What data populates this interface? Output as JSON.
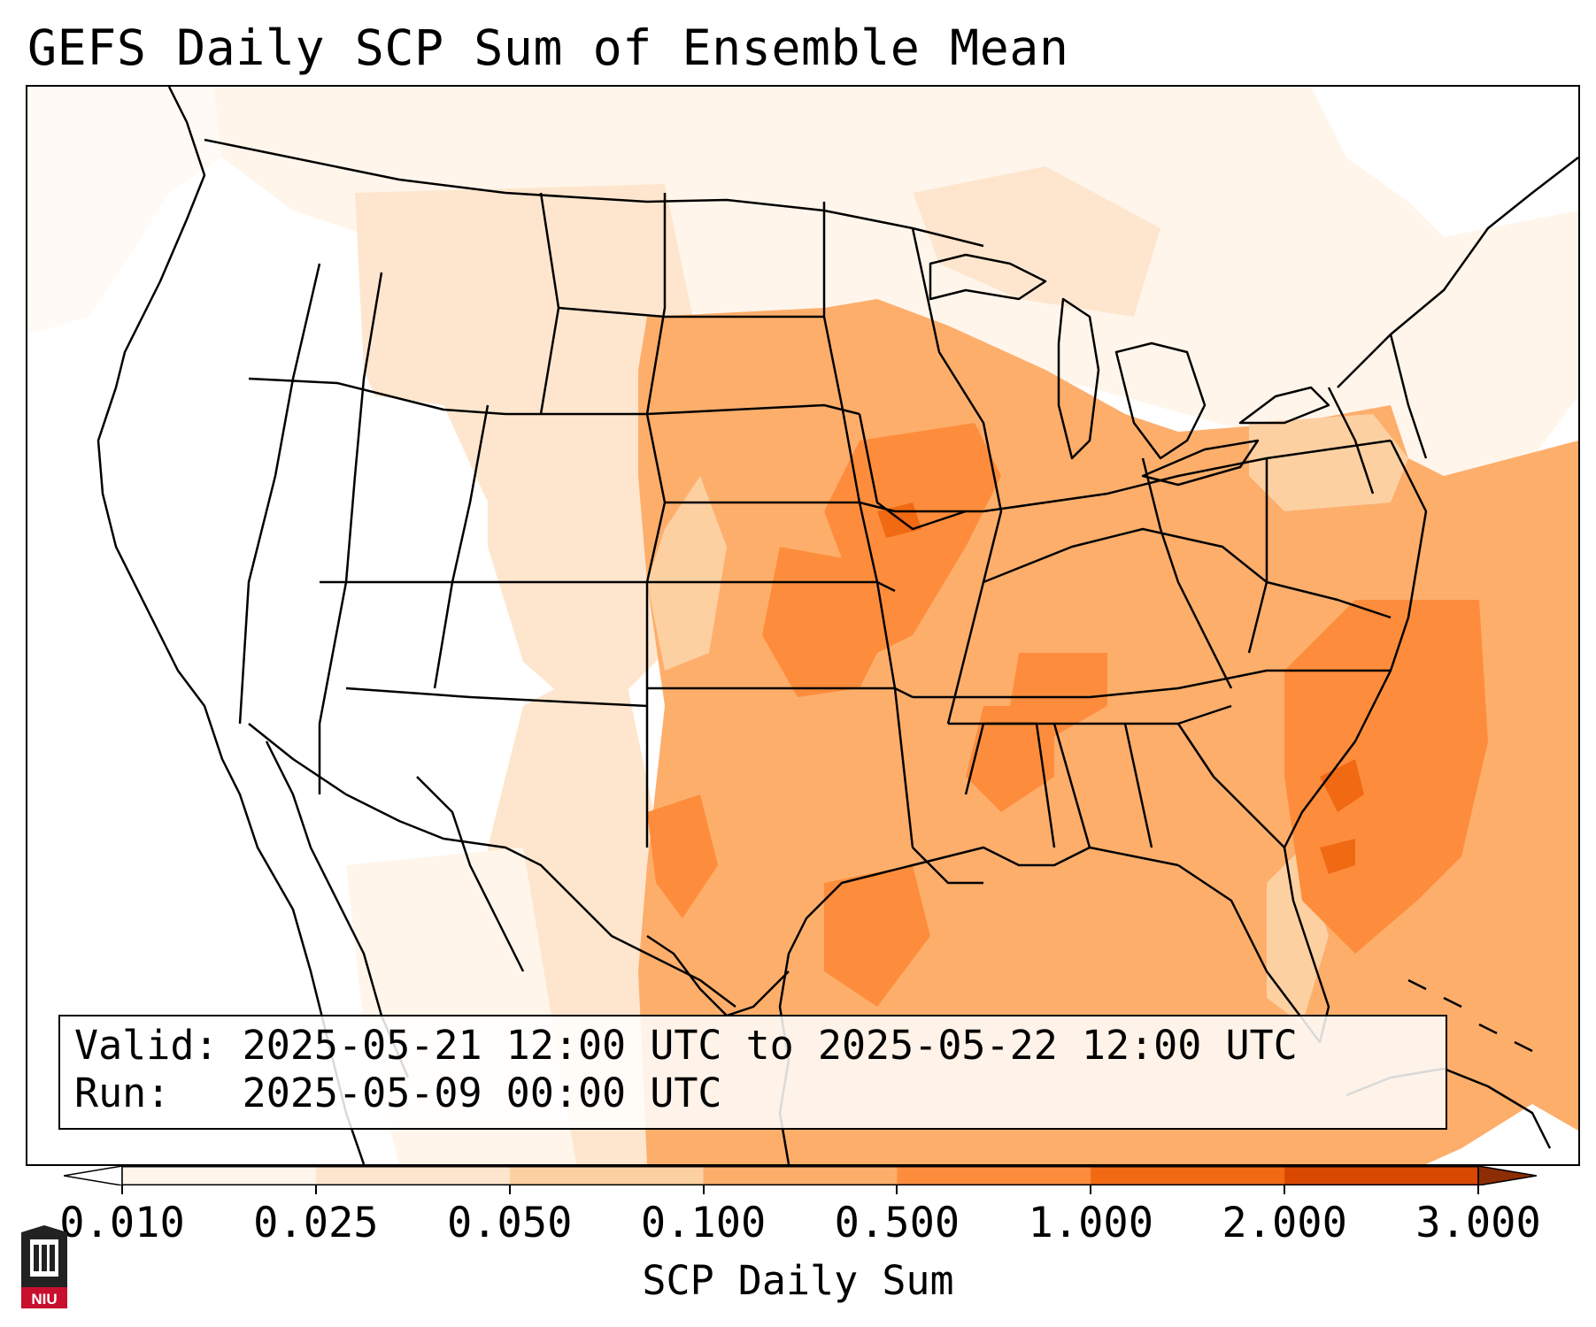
{
  "title": "GEFS Daily SCP Sum of Ensemble Mean",
  "info": {
    "valid_label": "Valid:",
    "valid_value": "2025-05-21 12:00 UTC to 2025-05-22 12:00 UTC",
    "run_label": "Run:",
    "run_value": "2025-05-09 00:00 UTC"
  },
  "colorbar": {
    "label": "SCP Daily Sum",
    "ticks": [
      "0.010",
      "0.025",
      "0.050",
      "0.100",
      "0.500",
      "1.000",
      "2.000",
      "3.000"
    ],
    "colors": [
      "#fff5eb",
      "#fee6ce",
      "#fdd0a2",
      "#fdae6b",
      "#fd8d3c",
      "#f16913",
      "#d94801"
    ],
    "under_color": "#ffffff",
    "over_color": "#8c2d04"
  },
  "logo": {
    "text": "NIU",
    "color": "#c8102e"
  },
  "map": {
    "region": "Contiguous United States",
    "field": "GEFS ensemble mean daily SCP sum",
    "regions": [
      {
        "area": "West Coast and Great Basin",
        "category": "below 0.010"
      },
      {
        "area": "Northern and Central Rockies",
        "category": "0.010-0.050"
      },
      {
        "area": "Central and Southern Plains",
        "category": "0.050-0.500"
      },
      {
        "area": "Iowa / Missouri / Kansas",
        "category": "0.100-0.500"
      },
      {
        "area": "Southeast and Gulf Coast",
        "category": "0.050-0.500"
      },
      {
        "area": "Western Atlantic offshore",
        "category": "0.100-0.500"
      }
    ]
  }
}
